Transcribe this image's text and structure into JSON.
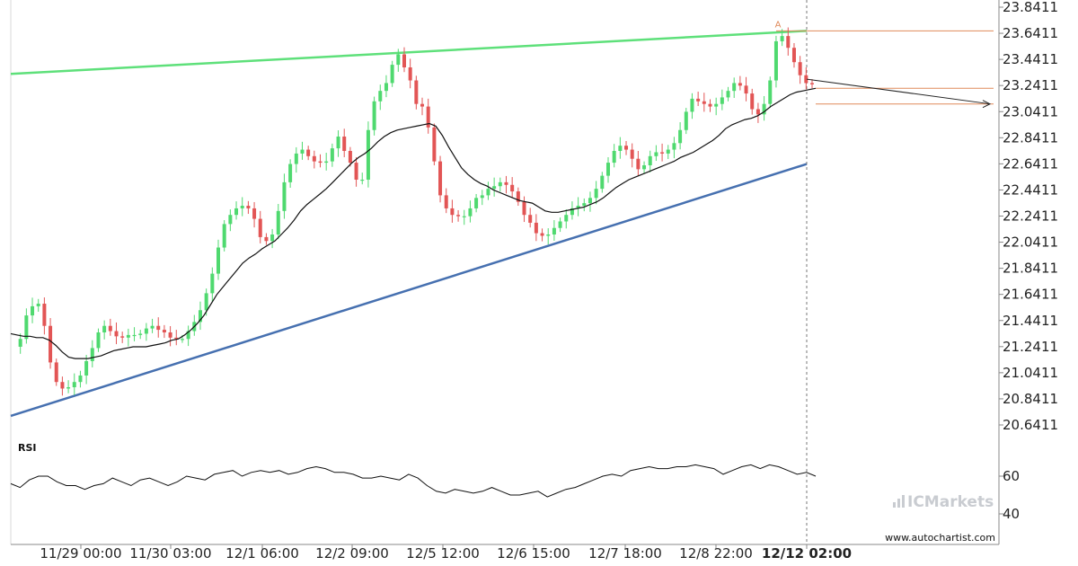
{
  "chart_data": {
    "type": "candlestick",
    "y_axis": {
      "range": [
        20.45,
        23.89
      ],
      "ticks": [
        "23.8411",
        "23.6411",
        "23.4411",
        "23.2411",
        "23.0411",
        "22.8411",
        "22.6411",
        "22.4411",
        "22.2411",
        "22.0411",
        "21.8411",
        "21.6411",
        "21.4411",
        "21.2411",
        "21.0411",
        "20.8411",
        "20.6411"
      ]
    },
    "x_axis": {
      "tick_labels": [
        "11/29 00:00",
        "11/30 03:00",
        "12/1 06:00",
        "12/2 09:00",
        "12/5 12:00",
        "12/6 15:00",
        "12/7 18:00",
        "12/8 22:00",
        "12/12 02:00"
      ],
      "highlighted_label": "12/12 02:00"
    },
    "pattern": {
      "type": "rising wedge",
      "resistance": {
        "start": 23.33,
        "end": 23.66
      },
      "support": {
        "start": 20.71,
        "end": 22.64
      },
      "point_label": "A",
      "target_high": 23.66,
      "target_mid": 23.22,
      "target_low": 23.1
    },
    "price_series": [
      21.24,
      21.3,
      21.48,
      21.55,
      21.57,
      21.4,
      21.12,
      20.97,
      20.92,
      20.93,
      20.97,
      21.02,
      21.13,
      21.23,
      21.35,
      21.4,
      21.36,
      21.32,
      21.31,
      21.33,
      21.33,
      21.34,
      21.38,
      21.4,
      21.37,
      21.35,
      21.31,
      21.3,
      21.3,
      21.36,
      21.43,
      21.52,
      21.65,
      21.8,
      22.0,
      22.18,
      22.25,
      22.3,
      22.32,
      22.3,
      22.22,
      22.08,
      22.05,
      22.1,
      22.28,
      22.5,
      22.64,
      22.72,
      22.75,
      22.7,
      22.66,
      22.65,
      22.66,
      22.76,
      22.85,
      22.74,
      22.65,
      22.52,
      22.52,
      22.9,
      23.12,
      23.2,
      23.26,
      23.4,
      23.48,
      23.38,
      23.28,
      23.1,
      23.08,
      22.92,
      22.66,
      22.4,
      22.3,
      22.25,
      22.24,
      22.24,
      22.3,
      22.38,
      22.4,
      22.45,
      22.47,
      22.5,
      22.48,
      22.43,
      22.35,
      22.25,
      22.19,
      22.11,
      22.09,
      22.1,
      22.15,
      22.2,
      22.25,
      22.3,
      22.32,
      22.34,
      22.38,
      22.45,
      22.55,
      22.65,
      22.74,
      22.78,
      22.75,
      22.68,
      22.6,
      22.63,
      22.7,
      22.73,
      22.72,
      22.75,
      22.8,
      22.9,
      23.04,
      23.14,
      23.12,
      23.1,
      23.08,
      23.1,
      23.15,
      23.2,
      23.26,
      23.24,
      23.18,
      23.06,
      23.02,
      23.1,
      23.28,
      23.58,
      23.62,
      23.53,
      23.42,
      23.32,
      23.26,
      23.25
    ],
    "moving_average": [
      21.34,
      21.33,
      21.32,
      21.32,
      21.31,
      21.31,
      21.29,
      21.25,
      21.2,
      21.16,
      21.15,
      21.15,
      21.15,
      21.16,
      21.17,
      21.19,
      21.21,
      21.22,
      21.23,
      21.24,
      21.24,
      21.24,
      21.25,
      21.26,
      21.27,
      21.29,
      21.3,
      21.33,
      21.37,
      21.42,
      21.48,
      21.56,
      21.64,
      21.7,
      21.76,
      21.82,
      21.88,
      21.92,
      21.95,
      21.99,
      22.02,
      22.05,
      22.1,
      22.15,
      22.21,
      22.28,
      22.33,
      22.37,
      22.41,
      22.45,
      22.5,
      22.55,
      22.6,
      22.65,
      22.69,
      22.72,
      22.76,
      22.81,
      22.85,
      22.88,
      22.9,
      22.91,
      22.92,
      22.93,
      22.94,
      22.95,
      22.93,
      22.86,
      22.77,
      22.69,
      22.61,
      22.56,
      22.52,
      22.49,
      22.47,
      22.44,
      22.42,
      22.4,
      22.38,
      22.36,
      22.35,
      22.34,
      22.31,
      22.28,
      22.27,
      22.27,
      22.28,
      22.29,
      22.3,
      22.31,
      22.33,
      22.35,
      22.38,
      22.42,
      22.46,
      22.49,
      22.52,
      22.54,
      22.56,
      22.58,
      22.6,
      22.62,
      22.64,
      22.66,
      22.69,
      22.71,
      22.73,
      22.76,
      22.79,
      22.82,
      22.86,
      22.91,
      22.94,
      22.96,
      22.98,
      22.99,
      23.01,
      23.04,
      23.08,
      23.11,
      23.14,
      23.17,
      23.19,
      23.2,
      23.21,
      23.22
    ],
    "rsi": {
      "label": "RSI",
      "ticks": [
        "60",
        "40"
      ],
      "range": [
        30,
        72
      ],
      "values": [
        56,
        54,
        58,
        60,
        60,
        57,
        55,
        55,
        53,
        55,
        56,
        59,
        57,
        55,
        58,
        59,
        57,
        55,
        57,
        60,
        59,
        58,
        61,
        62,
        63,
        60,
        62,
        63,
        62,
        63,
        61,
        62,
        64,
        65,
        64,
        62,
        62,
        61,
        59,
        59,
        60,
        59,
        58,
        61,
        59,
        55,
        52,
        51,
        53,
        52,
        51,
        52,
        54,
        52,
        50,
        50,
        51,
        52,
        49,
        51,
        53,
        54,
        56,
        58,
        60,
        61,
        60,
        63,
        64,
        65,
        64,
        64,
        65,
        65,
        66,
        65,
        64,
        61,
        63,
        65,
        66,
        64,
        66,
        65,
        63,
        61,
        62,
        60
      ]
    },
    "watermark": "ICMarkets",
    "credit": "www.autochartist.com"
  }
}
